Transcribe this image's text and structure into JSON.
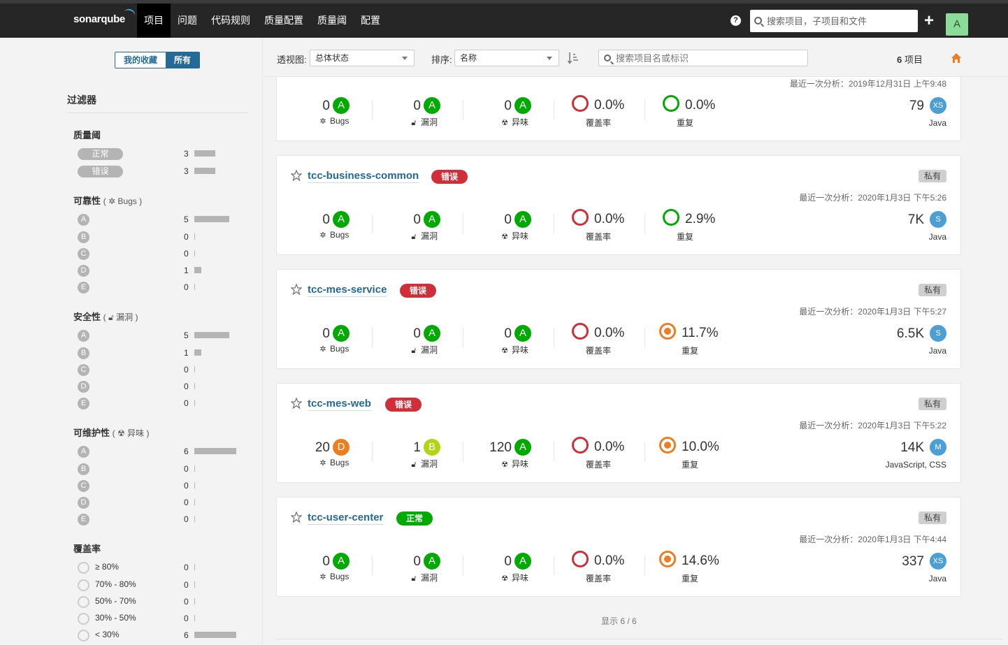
{
  "nav": {
    "logo": "sonarqube",
    "items": [
      {
        "label": "项目",
        "active": true
      },
      {
        "label": "问题"
      },
      {
        "label": "代码规则"
      },
      {
        "label": "质量配置"
      },
      {
        "label": "质量阈"
      },
      {
        "label": "配置"
      }
    ],
    "search_placeholder": "搜索项目，子项目和文件",
    "avatar": "A"
  },
  "sidebar": {
    "toggle": {
      "favorites": "我的收藏",
      "all": "所有"
    },
    "filters_title": "过滤器",
    "quality_gate": {
      "title": "质量阈",
      "items": [
        {
          "label": "正常",
          "count": "3",
          "value": 3
        },
        {
          "label": "错误",
          "count": "3",
          "value": 3
        }
      ]
    },
    "reliability": {
      "title": "可靠性",
      "sub": "Bugs",
      "items": [
        {
          "label": "A",
          "count": "5",
          "value": 5
        },
        {
          "label": "B",
          "count": "0",
          "value": 0
        },
        {
          "label": "C",
          "count": "0",
          "value": 0
        },
        {
          "label": "D",
          "count": "1",
          "value": 1
        },
        {
          "label": "E",
          "count": "0",
          "value": 0
        }
      ]
    },
    "security": {
      "title": "安全性",
      "sub": "漏洞",
      "items": [
        {
          "label": "A",
          "count": "5",
          "value": 5
        },
        {
          "label": "B",
          "count": "1",
          "value": 1
        },
        {
          "label": "C",
          "count": "0",
          "value": 0
        },
        {
          "label": "D",
          "count": "0",
          "value": 0
        },
        {
          "label": "E",
          "count": "0",
          "value": 0
        }
      ]
    },
    "maintainability": {
      "title": "可维护性",
      "sub": "异味",
      "items": [
        {
          "label": "A",
          "count": "6",
          "value": 6
        },
        {
          "label": "B",
          "count": "0",
          "value": 0
        },
        {
          "label": "C",
          "count": "0",
          "value": 0
        },
        {
          "label": "D",
          "count": "0",
          "value": 0
        },
        {
          "label": "E",
          "count": "0",
          "value": 0
        }
      ]
    },
    "coverage": {
      "title": "覆盖率",
      "items": [
        {
          "label": "≥ 80%",
          "count": "0",
          "value": 0
        },
        {
          "label": "70% - 80%",
          "count": "0",
          "value": 0
        },
        {
          "label": "50% - 70%",
          "count": "0",
          "value": 0
        },
        {
          "label": "30% - 50%",
          "count": "0",
          "value": 0
        },
        {
          "label": "< 30%",
          "count": "6",
          "value": 6
        }
      ]
    }
  },
  "toolbar": {
    "perspective_label": "透视图:",
    "perspective_value": "总体状态",
    "sort_label": "排序:",
    "sort_value": "名称",
    "search_placeholder": "搜索项目名或标识",
    "count_num": "6",
    "count_unit": "项目"
  },
  "labels": {
    "bugs": "Bugs",
    "vulnerabilities": "漏洞",
    "code_smells": "异味",
    "coverage": "覆盖率",
    "duplications": "重复"
  },
  "projects": [
    {
      "name": "",
      "quality_gate": "",
      "visibility": "",
      "analysis": "最近一次分析：2019年12月31日 上午9:48",
      "bugs": "0",
      "bugs_rating": "A",
      "vulns": "0",
      "vulns_rating": "A",
      "smells": "0",
      "smells_rating": "A",
      "coverage": "0.0%",
      "dup": "0.0%",
      "dup_color": "green",
      "loc": "79",
      "size": "XS",
      "langs": "Java"
    },
    {
      "name": "tcc-business-common",
      "quality_gate": "错误",
      "qg_status": "err",
      "visibility": "私有",
      "analysis": "最近一次分析：2020年1月3日 下午5:26",
      "bugs": "0",
      "bugs_rating": "A",
      "vulns": "0",
      "vulns_rating": "A",
      "smells": "0",
      "smells_rating": "A",
      "coverage": "0.0%",
      "dup": "2.9%",
      "dup_color": "green",
      "loc": "7K",
      "size": "S",
      "langs": "Java"
    },
    {
      "name": "tcc-mes-service",
      "quality_gate": "错误",
      "qg_status": "err",
      "visibility": "私有",
      "analysis": "最近一次分析：2020年1月3日 下午5:27",
      "bugs": "0",
      "bugs_rating": "A",
      "vulns": "0",
      "vulns_rating": "A",
      "smells": "0",
      "smells_rating": "A",
      "coverage": "0.0%",
      "dup": "11.7%",
      "dup_color": "orange",
      "loc": "6.5K",
      "size": "S",
      "langs": "Java"
    },
    {
      "name": "tcc-mes-web",
      "quality_gate": "错误",
      "qg_status": "err",
      "visibility": "私有",
      "analysis": "最近一次分析：2020年1月3日 下午5:22",
      "bugs": "20",
      "bugs_rating": "D",
      "vulns": "1",
      "vulns_rating": "B",
      "smells": "120",
      "smells_rating": "A",
      "coverage": "0.0%",
      "dup": "10.0%",
      "dup_color": "orange",
      "loc": "14K",
      "size": "M",
      "langs": "JavaScript, CSS"
    },
    {
      "name": "tcc-user-center",
      "quality_gate": "正常",
      "qg_status": "ok",
      "visibility": "私有",
      "analysis": "最近一次分析：2020年1月3日 下午4:44",
      "bugs": "0",
      "bugs_rating": "A",
      "vulns": "0",
      "vulns_rating": "A",
      "smells": "0",
      "smells_rating": "A",
      "coverage": "0.0%",
      "dup": "14.6%",
      "dup_color": "orange",
      "loc": "337",
      "size": "XS",
      "langs": "Java"
    }
  ],
  "footer": {
    "shown": "显示 6 / 6"
  },
  "colors": {
    "brand_blue": "#236a97",
    "rating_a": "#00aa00",
    "rating_b": "#b0d513",
    "rating_d": "#ed7d20",
    "error": "#d02f3a"
  }
}
